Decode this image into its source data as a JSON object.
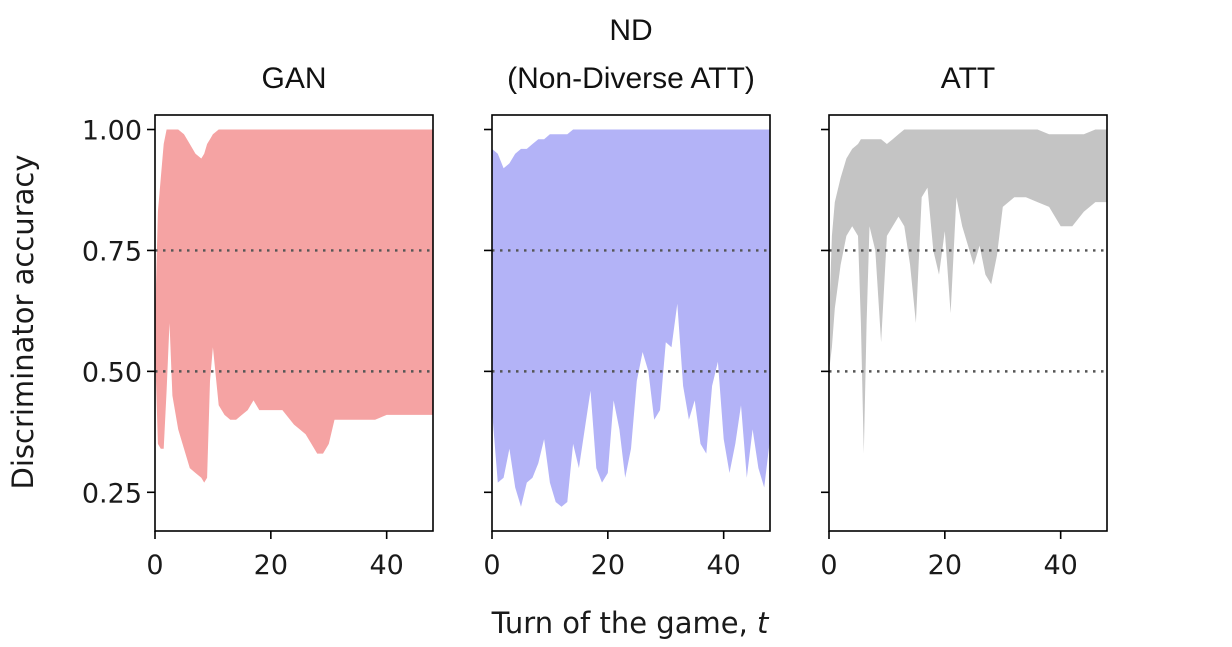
{
  "figure": {
    "ylabel": "Discriminator accuracy",
    "xlabel_main": "Turn of the game, ",
    "xlabel_var": "t"
  },
  "chart_data": [
    {
      "type": "area",
      "title": "GAN",
      "color": "#f5a3a3",
      "xlim": [
        0,
        48
      ],
      "ylim": [
        0.17,
        1.03
      ],
      "xticks": [
        0,
        20,
        40
      ],
      "yticks": [
        0.25,
        0.5,
        0.75,
        1.0
      ],
      "ytick_labels": [
        "0.25",
        "0.50",
        "0.75",
        "1.00"
      ],
      "reference_lines": [
        0.5,
        0.75
      ],
      "x": [
        0,
        0.5,
        1,
        1.5,
        2,
        2.5,
        3,
        4,
        5,
        6,
        7,
        8,
        8.5,
        9,
        9.5,
        10,
        11,
        12,
        13,
        14,
        15,
        16,
        17,
        18,
        20,
        22,
        24,
        25,
        26,
        27,
        28,
        29,
        30,
        31,
        32,
        34,
        36,
        38,
        40,
        42,
        44,
        46,
        48
      ],
      "upper": [
        0.6,
        0.83,
        0.9,
        0.97,
        1.0,
        1.0,
        1.0,
        1.0,
        0.99,
        0.97,
        0.95,
        0.94,
        0.95,
        0.97,
        0.98,
        0.99,
        1.0,
        1.0,
        1.0,
        1.0,
        1.0,
        1.0,
        1.0,
        1.0,
        1.0,
        1.0,
        1.0,
        1.0,
        1.0,
        1.0,
        1.0,
        1.0,
        1.0,
        1.0,
        1.0,
        1.0,
        1.0,
        1.0,
        1.0,
        1.0,
        1.0,
        1.0,
        1.0
      ],
      "lower": [
        0.55,
        0.35,
        0.34,
        0.34,
        0.46,
        0.6,
        0.45,
        0.38,
        0.34,
        0.3,
        0.29,
        0.28,
        0.27,
        0.28,
        0.48,
        0.55,
        0.43,
        0.41,
        0.4,
        0.4,
        0.41,
        0.42,
        0.44,
        0.42,
        0.42,
        0.42,
        0.39,
        0.38,
        0.37,
        0.35,
        0.33,
        0.33,
        0.35,
        0.4,
        0.4,
        0.4,
        0.4,
        0.4,
        0.41,
        0.41,
        0.41,
        0.41,
        0.41
      ]
    },
    {
      "type": "area",
      "title": "ND\n(Non-Diverse ATT)",
      "color": "#b3b3f7",
      "xlim": [
        0,
        48
      ],
      "ylim": [
        0.17,
        1.03
      ],
      "xticks": [
        0,
        20,
        40
      ],
      "yticks": [
        0.25,
        0.5,
        0.75,
        1.0
      ],
      "ytick_labels": [
        "",
        "",
        "",
        ""
      ],
      "reference_lines": [
        0.5,
        0.75
      ],
      "x": [
        0,
        1,
        2,
        3,
        4,
        5,
        6,
        7,
        8,
        9,
        10,
        11,
        12,
        13,
        14,
        15,
        16,
        17,
        18,
        19,
        20,
        21,
        22,
        23,
        24,
        25,
        26,
        27,
        28,
        29,
        30,
        31,
        32,
        33,
        34,
        35,
        36,
        37,
        38,
        39,
        40,
        41,
        42,
        43,
        44,
        45,
        46,
        47,
        48
      ],
      "upper": [
        0.96,
        0.95,
        0.92,
        0.93,
        0.95,
        0.96,
        0.96,
        0.97,
        0.98,
        0.98,
        0.99,
        0.99,
        0.99,
        0.99,
        1.0,
        1.0,
        1.0,
        1.0,
        1.0,
        1.0,
        1.0,
        1.0,
        1.0,
        1.0,
        1.0,
        1.0,
        1.0,
        1.0,
        1.0,
        1.0,
        1.0,
        1.0,
        1.0,
        1.0,
        1.0,
        1.0,
        1.0,
        1.0,
        1.0,
        1.0,
        1.0,
        1.0,
        1.0,
        1.0,
        1.0,
        1.0,
        1.0,
        1.0,
        1.0
      ],
      "lower": [
        0.42,
        0.27,
        0.28,
        0.34,
        0.26,
        0.22,
        0.27,
        0.28,
        0.31,
        0.36,
        0.27,
        0.23,
        0.22,
        0.23,
        0.35,
        0.3,
        0.38,
        0.46,
        0.3,
        0.27,
        0.29,
        0.44,
        0.38,
        0.28,
        0.34,
        0.48,
        0.54,
        0.5,
        0.4,
        0.42,
        0.56,
        0.55,
        0.64,
        0.47,
        0.4,
        0.44,
        0.35,
        0.33,
        0.47,
        0.52,
        0.36,
        0.29,
        0.35,
        0.43,
        0.28,
        0.38,
        0.3,
        0.26,
        0.36
      ]
    },
    {
      "type": "area",
      "title": "ATT",
      "color": "#c4c4c4",
      "xlim": [
        0,
        48
      ],
      "ylim": [
        0.17,
        1.03
      ],
      "xticks": [
        0,
        20,
        40
      ],
      "yticks": [
        0.25,
        0.5,
        0.75,
        1.0
      ],
      "ytick_labels": [
        "",
        "",
        "",
        ""
      ],
      "reference_lines": [
        0.5,
        0.75
      ],
      "x": [
        0,
        0.5,
        1,
        2,
        3,
        4,
        5,
        5.5,
        6,
        6.5,
        7,
        8,
        9,
        10,
        11,
        12,
        13,
        14,
        15,
        16,
        17,
        18,
        19,
        20,
        21,
        22,
        23,
        24,
        25,
        26,
        27,
        28,
        29,
        30,
        31,
        32,
        34,
        36,
        38,
        40,
        42,
        44,
        46,
        48
      ],
      "upper": [
        0.6,
        0.78,
        0.85,
        0.9,
        0.94,
        0.96,
        0.97,
        0.98,
        0.98,
        0.98,
        0.98,
        0.98,
        0.98,
        0.97,
        0.98,
        0.99,
        1.0,
        1.0,
        1.0,
        1.0,
        1.0,
        1.0,
        1.0,
        1.0,
        1.0,
        1.0,
        1.0,
        1.0,
        1.0,
        1.0,
        1.0,
        1.0,
        1.0,
        1.0,
        1.0,
        1.0,
        1.0,
        1.0,
        0.99,
        0.99,
        0.99,
        0.99,
        1.0,
        1.0
      ],
      "lower": [
        0.5,
        0.55,
        0.63,
        0.72,
        0.78,
        0.8,
        0.78,
        0.6,
        0.33,
        0.6,
        0.8,
        0.75,
        0.56,
        0.78,
        0.8,
        0.82,
        0.8,
        0.72,
        0.6,
        0.86,
        0.88,
        0.75,
        0.7,
        0.79,
        0.62,
        0.86,
        0.8,
        0.76,
        0.72,
        0.76,
        0.7,
        0.68,
        0.74,
        0.84,
        0.85,
        0.86,
        0.86,
        0.85,
        0.84,
        0.8,
        0.8,
        0.83,
        0.85,
        0.85
      ]
    }
  ]
}
